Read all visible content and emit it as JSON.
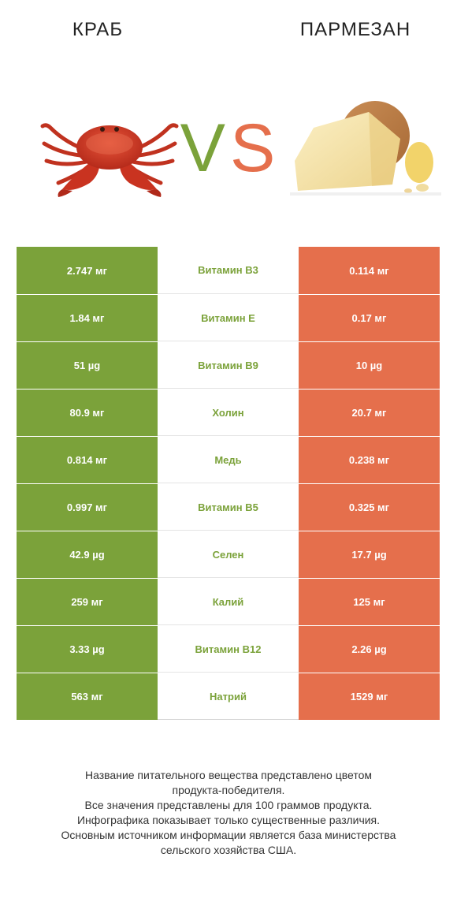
{
  "header": {
    "left_title": "КРАБ",
    "right_title": "ПАРМЕЗАН",
    "vs_v": "V",
    "vs_s": "S"
  },
  "colors": {
    "winner_left": "#7ba23a",
    "winner_right": "#e56f4c"
  },
  "rows": [
    {
      "left": "2.747 мг",
      "name": "Витамин B3",
      "right": "0.114 мг"
    },
    {
      "left": "1.84 мг",
      "name": "Витамин E",
      "right": "0.17 мг"
    },
    {
      "left": "51 µg",
      "name": "Витамин B9",
      "right": "10 µg"
    },
    {
      "left": "80.9 мг",
      "name": "Холин",
      "right": "20.7 мг"
    },
    {
      "left": "0.814 мг",
      "name": "Медь",
      "right": "0.238 мг"
    },
    {
      "left": "0.997 мг",
      "name": "Витамин B5",
      "right": "0.325 мг"
    },
    {
      "left": "42.9 µg",
      "name": "Селен",
      "right": "17.7 µg"
    },
    {
      "left": "259 мг",
      "name": "Калий",
      "right": "125 мг"
    },
    {
      "left": "3.33 µg",
      "name": "Витамин B12",
      "right": "2.26 µg"
    },
    {
      "left": "563 мг",
      "name": "Натрий",
      "right": "1529 мг"
    }
  ],
  "footer": {
    "line1": "Название питательного вещества представлено цветом",
    "line2": "продукта-победителя.",
    "line3": "Все значения представлены для 100 граммов продукта.",
    "line4": "Инфографика показывает только существенные различия.",
    "line5": "Основным источником информации является база министерства",
    "line6": "сельского хозяйства США."
  }
}
